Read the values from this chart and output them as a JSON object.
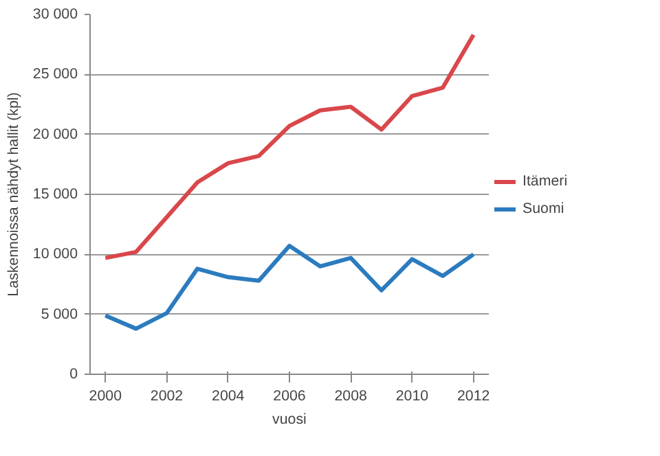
{
  "chart_data": {
    "type": "line",
    "xlabel": "vuosi",
    "ylabel": "Laskennoissa nähdyt hallit (kpl)",
    "x": [
      2000,
      2001,
      2002,
      2003,
      2004,
      2005,
      2006,
      2007,
      2008,
      2009,
      2010,
      2011,
      2012
    ],
    "series": [
      {
        "name": "Itämeri",
        "color": "#d9474b",
        "values": [
          9700,
          10200,
          13100,
          16000,
          17600,
          18200,
          20700,
          22000,
          22300,
          20400,
          23200,
          23900,
          28300
        ]
      },
      {
        "name": "Suomi",
        "color": "#2b7bbf",
        "values": [
          4900,
          3800,
          5100,
          8800,
          8100,
          7800,
          10700,
          9000,
          9700,
          7000,
          9600,
          8200,
          10000
        ]
      }
    ],
    "xlim": [
      1999.5,
      2012.5
    ],
    "xticks": [
      2000,
      2002,
      2004,
      2006,
      2008,
      2010,
      2012
    ],
    "ylim": [
      0,
      30000
    ],
    "yticks": [
      {
        "value": 0,
        "label": "0"
      },
      {
        "value": 5000,
        "label": "5 000"
      },
      {
        "value": 10000,
        "label": "10 000"
      },
      {
        "value": 15000,
        "label": "15 000"
      },
      {
        "value": 20000,
        "label": "20 000"
      },
      {
        "value": 25000,
        "label": "25 000"
      },
      {
        "value": 30000,
        "label": "30 000"
      }
    ],
    "grid": "y",
    "legend": "right",
    "marker": "none",
    "line_style": "solid"
  }
}
